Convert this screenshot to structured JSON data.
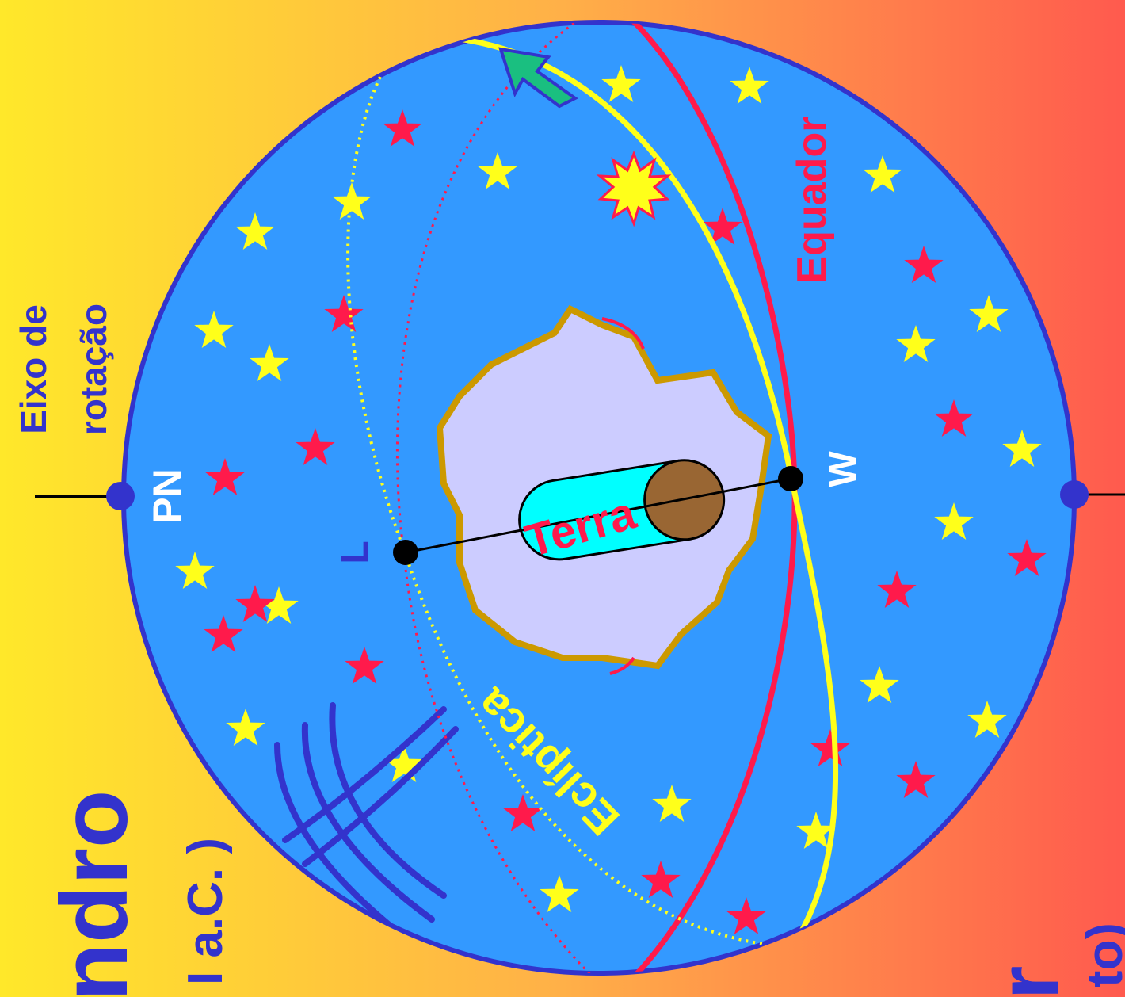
{
  "labels": {
    "axis_line1": "Eixo de",
    "axis_line2": "rotação",
    "pn": "PN",
    "equador": "Equador",
    "w": "W",
    "l": "L",
    "terra": "Terra",
    "ecliptica": "Eclíptica",
    "left_big": "ndro",
    "left_small": "I a.C. )",
    "right_big": "r",
    "right_small": "to)"
  },
  "colors": {
    "sphere": "#3399ff",
    "sphere_border": "#3333cc",
    "equator": "#ff1a4b",
    "ecliptic": "#ffff1a",
    "land": "#ccccff",
    "land_border": "#cc9900",
    "cylinder": "#00ffff",
    "earth_cap": "#996633",
    "arrow": "#1abf80",
    "text_white": "#ffffff",
    "text_blue": "#3333cc"
  }
}
